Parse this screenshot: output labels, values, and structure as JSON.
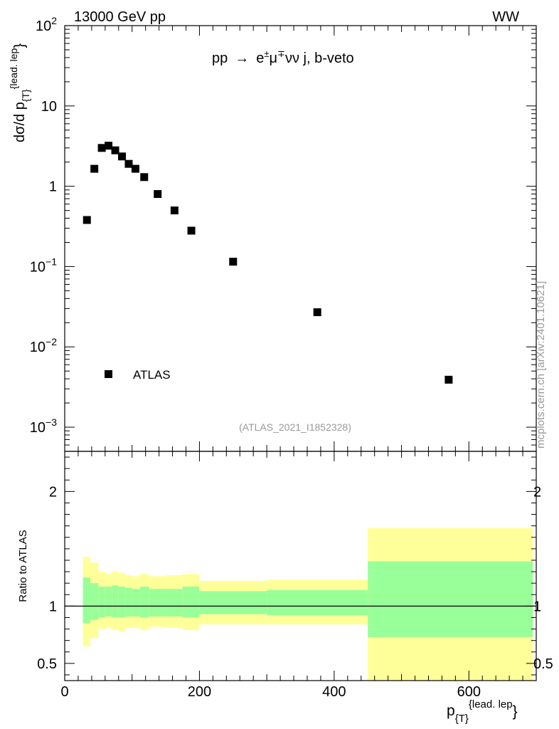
{
  "header": {
    "energy_label": "13000 GeV pp",
    "process_tag": "WW",
    "side_credit": "mcplots.cern.ch [arXiv:2401.10621]",
    "analysis_id": "(ATLAS_2021_I1852328)"
  },
  "chart_data": [
    {
      "type": "scatter",
      "title": "pp → e±μ∓νν j, b-veto",
      "title_parts": {
        "prefix": "pp",
        "arrow": "→",
        "e": "e",
        "pm": "±",
        "mu": "μ",
        "mp": "∓",
        "rest": "νν j, b-veto"
      },
      "ylabel": "dσ/d p",
      "ylabel_sub": "{T}",
      "ylabel_sup": "{lead. lep",
      "ylabel_close": "}",
      "yscale": "log",
      "ylim": [
        0.0005,
        100
      ],
      "xlim": [
        0,
        700
      ],
      "y_ticks": [
        {
          "base": "10",
          "exp": "2",
          "value": 100
        },
        {
          "base": "10",
          "exp": "",
          "value": 10
        },
        {
          "base": "1",
          "exp": "",
          "value": 1
        },
        {
          "base": "10",
          "exp": "−1",
          "value": 0.1
        },
        {
          "base": "10",
          "exp": "−2",
          "value": 0.01
        },
        {
          "base": "10",
          "exp": "−3",
          "value": 0.001
        }
      ],
      "legend": {
        "position": "bottom-left",
        "entries": [
          "ATLAS"
        ]
      },
      "series": [
        {
          "name": "ATLAS",
          "color": "#000000",
          "x": [
            33,
            44,
            55,
            65,
            75,
            85,
            95,
            105,
            118,
            138,
            163,
            188,
            250,
            375,
            570
          ],
          "y": [
            0.38,
            1.65,
            3.0,
            3.2,
            2.8,
            2.35,
            1.9,
            1.65,
            1.3,
            0.8,
            0.5,
            0.28,
            0.115,
            0.027,
            0.0039
          ]
        }
      ]
    },
    {
      "type": "area",
      "ylabel": "Ratio to ATLAS",
      "xlabel": "p",
      "xlabel_sub": "{T}",
      "xlabel_sup": "{lead. lep",
      "xlabel_close": "}",
      "xlim": [
        0,
        700
      ],
      "ylim": [
        0.35,
        2.35
      ],
      "x_ticks": [
        "0",
        "200",
        "400",
        "600"
      ],
      "y_ticks_left": [
        "2",
        "1",
        "0.5"
      ],
      "y_ticks_right": [
        "2",
        "1",
        "0.5"
      ],
      "y_tick_values": [
        2,
        1,
        0.5
      ],
      "reference_line": 1,
      "bands": {
        "outer_color": "#ffff99",
        "inner_color": "#99ff99",
        "bins": [
          {
            "x0": 27,
            "x1": 38,
            "outer": [
              0.65,
              1.43
            ],
            "inner": [
              0.85,
              1.25
            ]
          },
          {
            "x0": 38,
            "x1": 50,
            "outer": [
              0.72,
              1.38
            ],
            "inner": [
              0.88,
              1.2
            ]
          },
          {
            "x0": 50,
            "x1": 60,
            "outer": [
              0.8,
              1.3
            ],
            "inner": [
              0.9,
              1.17
            ]
          },
          {
            "x0": 60,
            "x1": 70,
            "outer": [
              0.81,
              1.28
            ],
            "inner": [
              0.91,
              1.17
            ]
          },
          {
            "x0": 70,
            "x1": 80,
            "outer": [
              0.79,
              1.3
            ],
            "inner": [
              0.9,
              1.18
            ]
          },
          {
            "x0": 80,
            "x1": 90,
            "outer": [
              0.78,
              1.29
            ],
            "inner": [
              0.9,
              1.17
            ]
          },
          {
            "x0": 90,
            "x1": 100,
            "outer": [
              0.81,
              1.27
            ],
            "inner": [
              0.91,
              1.16
            ]
          },
          {
            "x0": 100,
            "x1": 112,
            "outer": [
              0.81,
              1.26
            ],
            "inner": [
              0.91,
              1.15
            ]
          },
          {
            "x0": 112,
            "x1": 125,
            "outer": [
              0.79,
              1.28
            ],
            "inner": [
              0.9,
              1.17
            ]
          },
          {
            "x0": 125,
            "x1": 150,
            "outer": [
              0.82,
              1.26
            ],
            "inner": [
              0.91,
              1.15
            ]
          },
          {
            "x0": 150,
            "x1": 175,
            "outer": [
              0.81,
              1.27
            ],
            "inner": [
              0.91,
              1.15
            ]
          },
          {
            "x0": 175,
            "x1": 200,
            "outer": [
              0.79,
              1.28
            ],
            "inner": [
              0.9,
              1.17
            ]
          },
          {
            "x0": 200,
            "x1": 300,
            "outer": [
              0.84,
              1.22
            ],
            "inner": [
              0.93,
              1.13
            ]
          },
          {
            "x0": 300,
            "x1": 450,
            "outer": [
              0.84,
              1.23
            ],
            "inner": [
              0.92,
              1.14
            ]
          },
          {
            "x0": 450,
            "x1": 695,
            "outer": [
              0.33,
              1.68
            ],
            "inner": [
              0.73,
              1.39
            ]
          }
        ]
      }
    }
  ]
}
